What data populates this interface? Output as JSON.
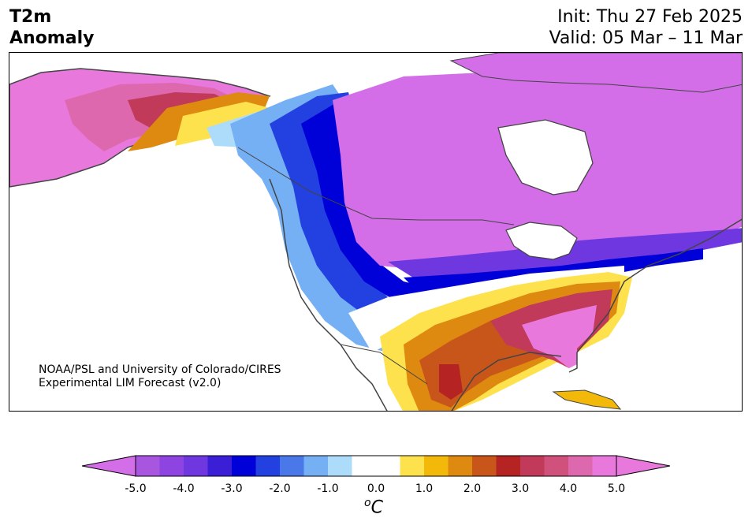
{
  "header": {
    "title_line1": "T2m",
    "title_line2": "Anomaly",
    "init": "Init: Thu 27 Feb 2025",
    "valid": "Valid: 05 Mar – 11 Mar"
  },
  "credit": {
    "line1": "NOAA/PSL and University of Colorado/CIRES",
    "line2": "Experimental LIM Forecast (v2.0)"
  },
  "colorbar": {
    "unit_base": "C",
    "unit_sup": "o",
    "ticks": [
      "-5.0",
      "-4.0",
      "-3.0",
      "-2.0",
      "-1.0",
      "0.0",
      "1.0",
      "2.0",
      "3.0",
      "4.0",
      "5.0"
    ],
    "levels": [
      {
        "from": -5.0,
        "to": -4.5,
        "color": "#a855e0"
      },
      {
        "from": -4.5,
        "to": -4.0,
        "color": "#8e44e0"
      },
      {
        "from": -4.0,
        "to": -3.5,
        "color": "#6f37e0"
      },
      {
        "from": -3.5,
        "to": -3.0,
        "color": "#3b1fd6"
      },
      {
        "from": -3.0,
        "to": -2.5,
        "color": "#0000d8"
      },
      {
        "from": -2.5,
        "to": -2.0,
        "color": "#2340e0"
      },
      {
        "from": -2.0,
        "to": -1.5,
        "color": "#4a78e8"
      },
      {
        "from": -1.5,
        "to": -1.0,
        "color": "#76b0f4"
      },
      {
        "from": -1.0,
        "to": -0.5,
        "color": "#addcfb"
      },
      {
        "from": -0.5,
        "to": 0.0,
        "color": "#ffffff"
      },
      {
        "from": 0.0,
        "to": 0.5,
        "color": "#ffffff"
      },
      {
        "from": 0.5,
        "to": 1.0,
        "color": "#fde24d"
      },
      {
        "from": 1.0,
        "to": 1.5,
        "color": "#f2b90a"
      },
      {
        "from": 1.5,
        "to": 2.0,
        "color": "#de8a10"
      },
      {
        "from": 2.0,
        "to": 2.5,
        "color": "#c8561a"
      },
      {
        "from": 2.5,
        "to": 3.0,
        "color": "#b52422"
      },
      {
        "from": 3.0,
        "to": 3.5,
        "color": "#c23a5a"
      },
      {
        "from": 3.5,
        "to": 4.0,
        "color": "#d0527c"
      },
      {
        "from": 4.0,
        "to": 4.5,
        "color": "#dd68ae"
      },
      {
        "from": 4.5,
        "to": 5.0,
        "color": "#e878dc"
      }
    ],
    "over_color": "#e878dc",
    "under_color": "#d36ee8"
  },
  "map_colors": {
    "land_outline": "#444444",
    "cold_max": "#d36ee8",
    "warm_max": "#e878dc"
  }
}
